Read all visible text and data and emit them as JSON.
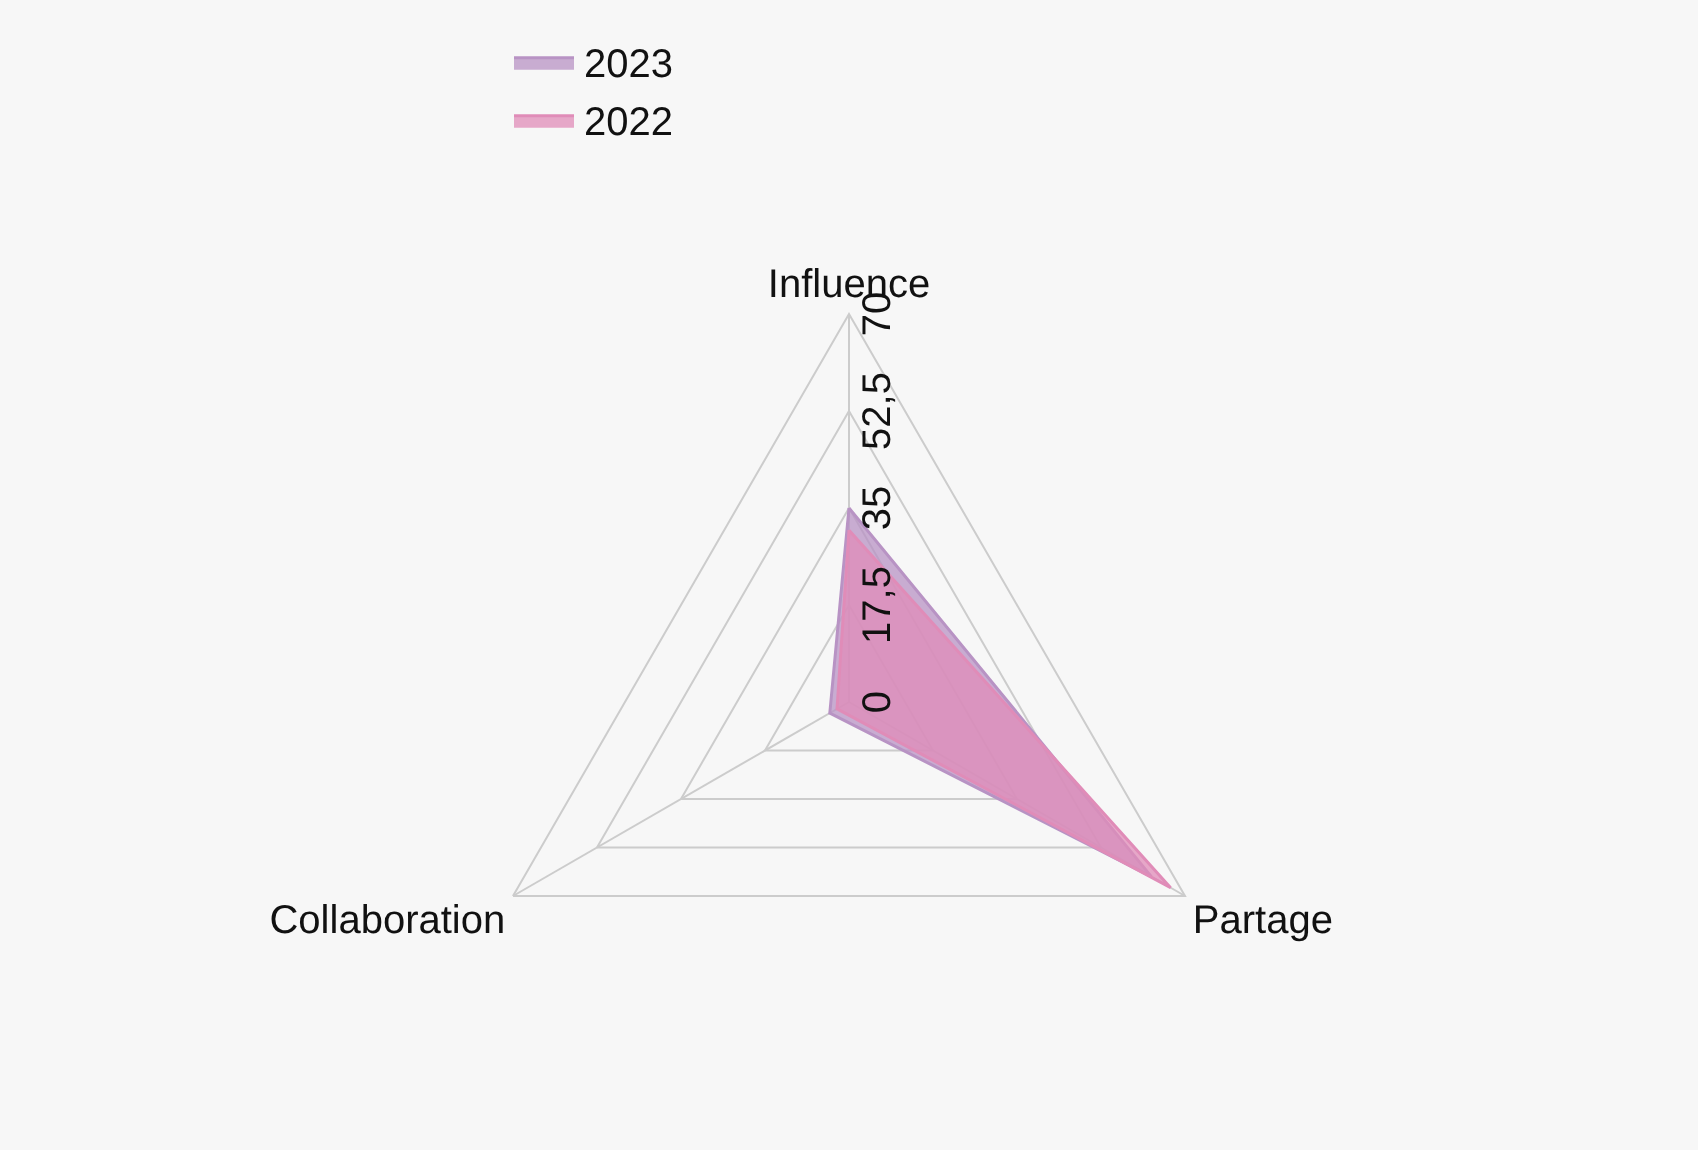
{
  "chart_data": {
    "type": "radar",
    "categories": [
      "Influence",
      "Partage",
      "Collaboration"
    ],
    "series": [
      {
        "name": "2022",
        "color": "#e08cb8",
        "values": [
          31,
          67,
          2.5
        ]
      },
      {
        "name": "2023",
        "color": "#b893c4",
        "values": [
          35,
          63,
          4
        ]
      }
    ],
    "ylim": [
      0,
      70
    ],
    "yticks": [
      0,
      {
        "value": 17.5,
        "label": "17,5"
      },
      35,
      {
        "value": 52.5,
        "label": "52,5"
      },
      70
    ],
    "grid": true,
    "legend": "top"
  }
}
